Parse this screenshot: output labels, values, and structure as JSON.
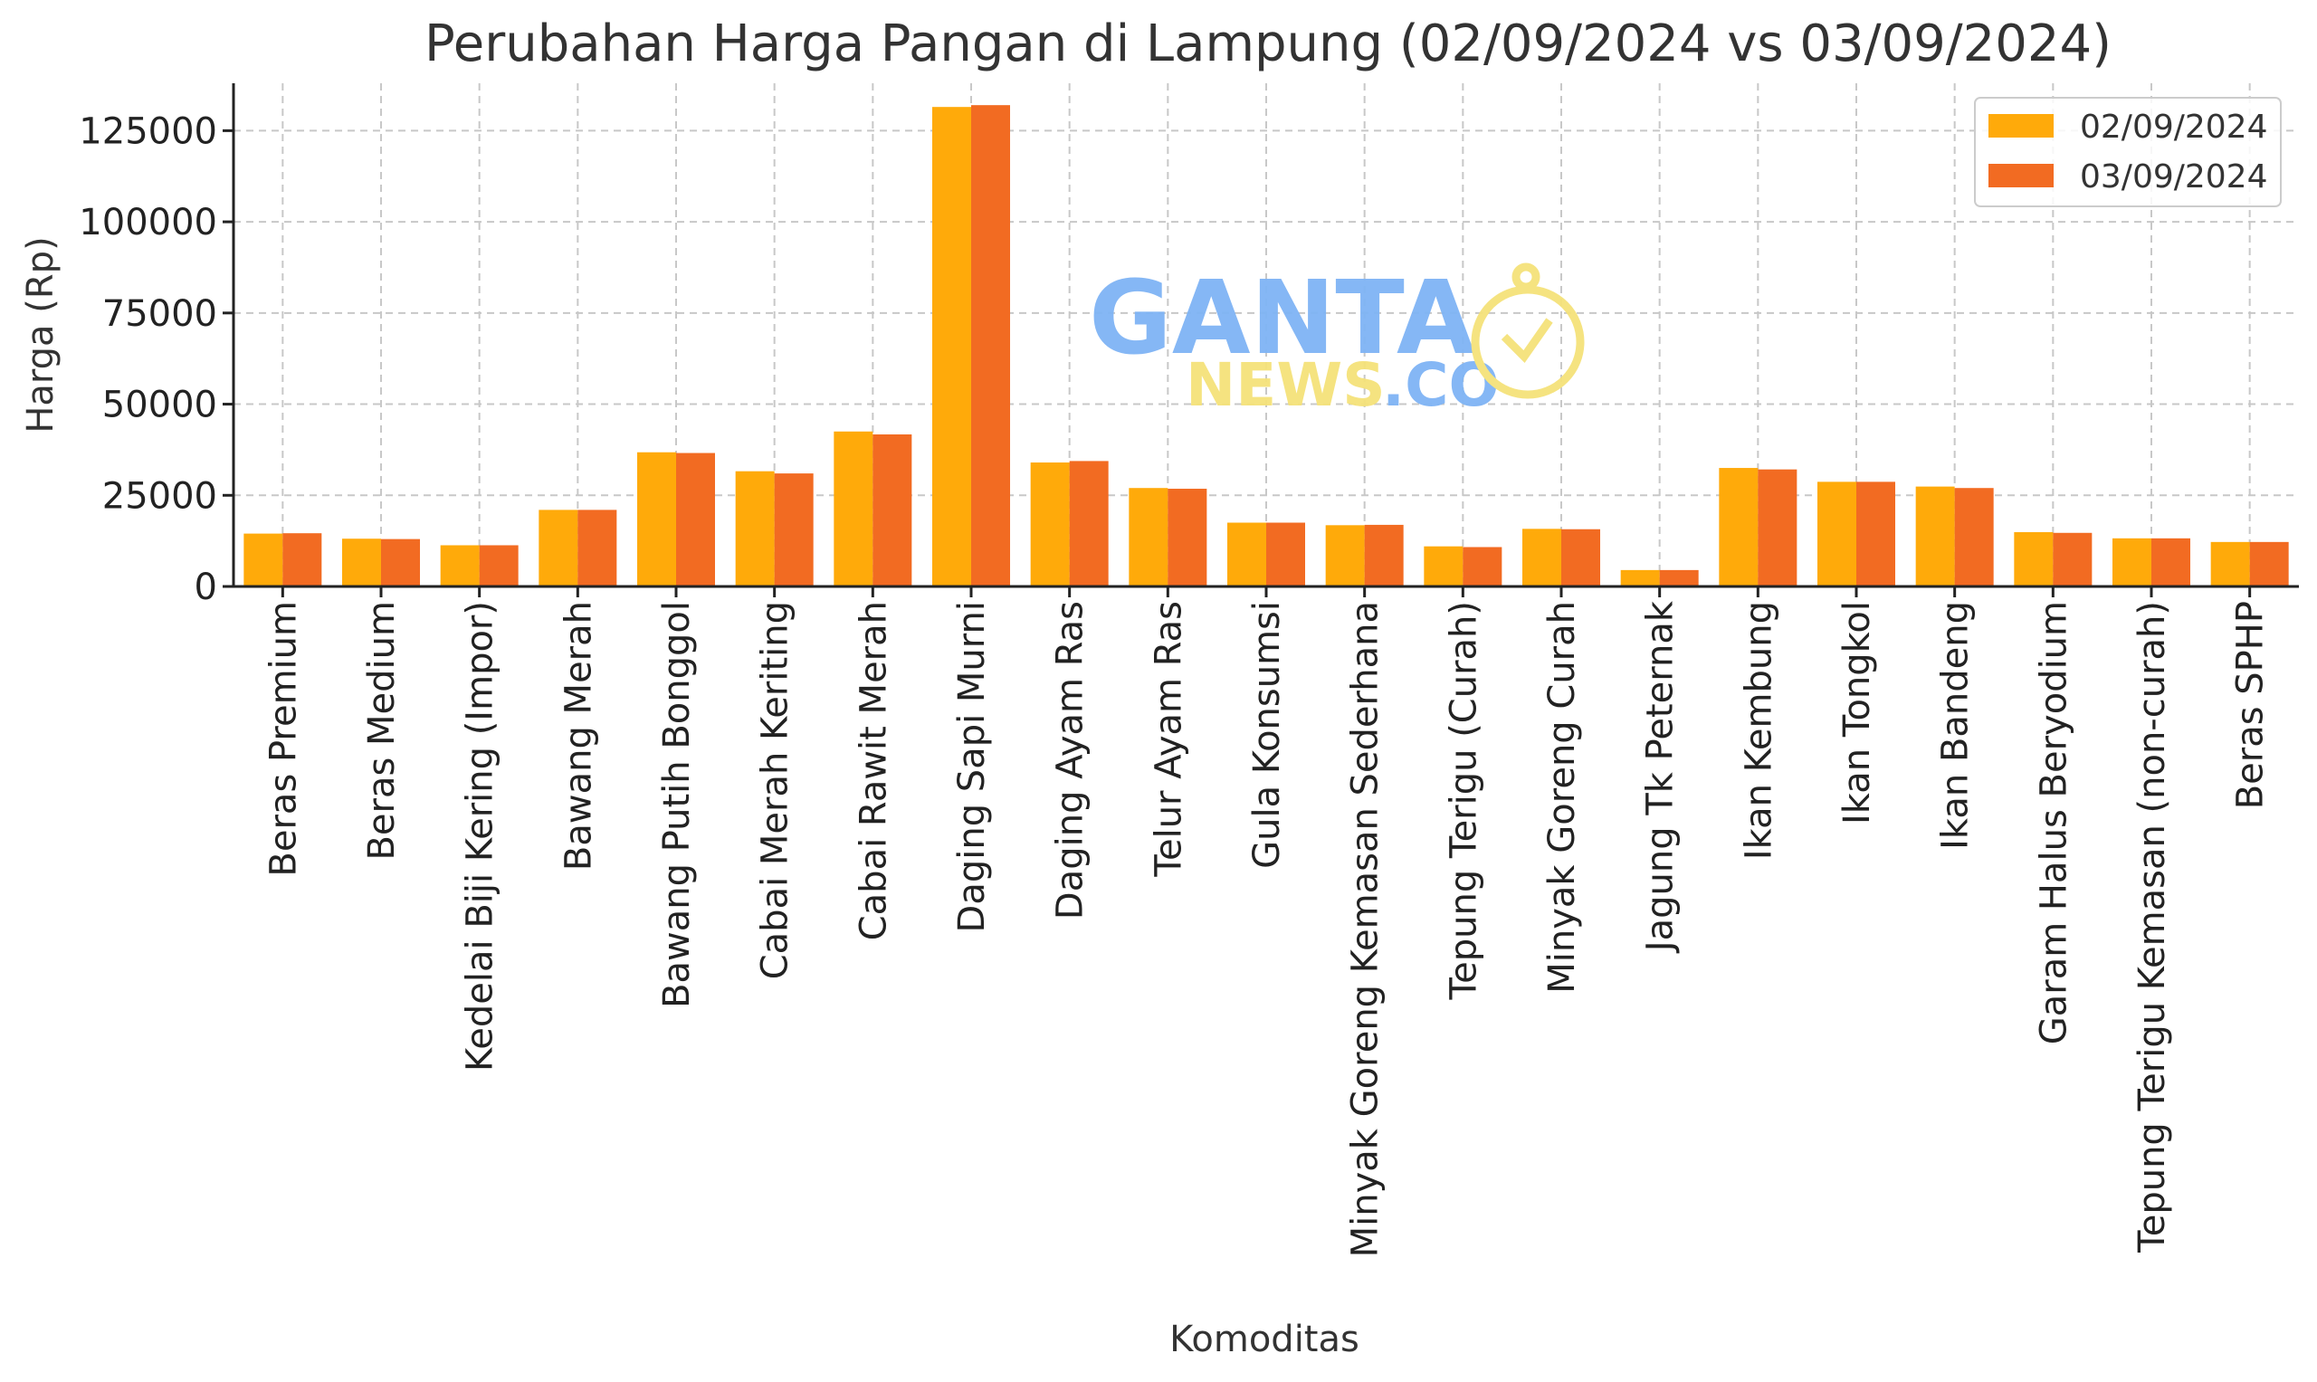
{
  "chart_data": {
    "type": "bar",
    "title": "Perubahan Harga Pangan di Lampung (02/09/2024 vs 03/09/2024)",
    "xlabel": "Komoditas",
    "ylabel": "Harga (Rp)",
    "ylim": [
      0,
      138000
    ],
    "yticks": [
      "0",
      "25000",
      "50000",
      "75000",
      "100000",
      "125000"
    ],
    "grid": true,
    "legend_position": "top-right",
    "categories": [
      "Beras Premium",
      "Beras Medium",
      "Kedelai Biji Kering (Impor)",
      "Bawang Merah",
      "Bawang Putih Bonggol",
      "Cabai Merah Keriting",
      "Cabai Rawit Merah",
      "Daging Sapi Murni",
      "Daging Ayam Ras",
      "Telur Ayam Ras",
      "Gula Konsumsi",
      "Minyak Goreng Kemasan Sederhana",
      "Tepung Terigu (Curah)",
      "Minyak Goreng Curah",
      "Jagung Tk Peternak",
      "Ikan Kembung",
      "Ikan Tongkol",
      "Ikan Bandeng",
      "Garam Halus Beryodium",
      "Tepung Terigu Kemasan (non-curah)",
      "Beras SPHP"
    ],
    "series": [
      {
        "name": "02/09/2024",
        "color": "#FFAA0A",
        "values": [
          14500,
          13100,
          11300,
          21000,
          36800,
          31600,
          42500,
          131500,
          34000,
          27000,
          17500,
          16800,
          11000,
          15800,
          4500,
          32500,
          28700,
          27400,
          14900,
          13200,
          12200
        ]
      },
      {
        "name": "03/09/2024",
        "color": "#F26B22",
        "values": [
          14600,
          13000,
          11300,
          21000,
          36600,
          31000,
          41700,
          132000,
          34400,
          26800,
          17500,
          16900,
          10800,
          15700,
          4500,
          32100,
          28700,
          27000,
          14700,
          13200,
          12200
        ]
      }
    ]
  },
  "watermark": {
    "main": "GANTA",
    "sub_left": "NEWS",
    "sub_right": ".CO"
  }
}
